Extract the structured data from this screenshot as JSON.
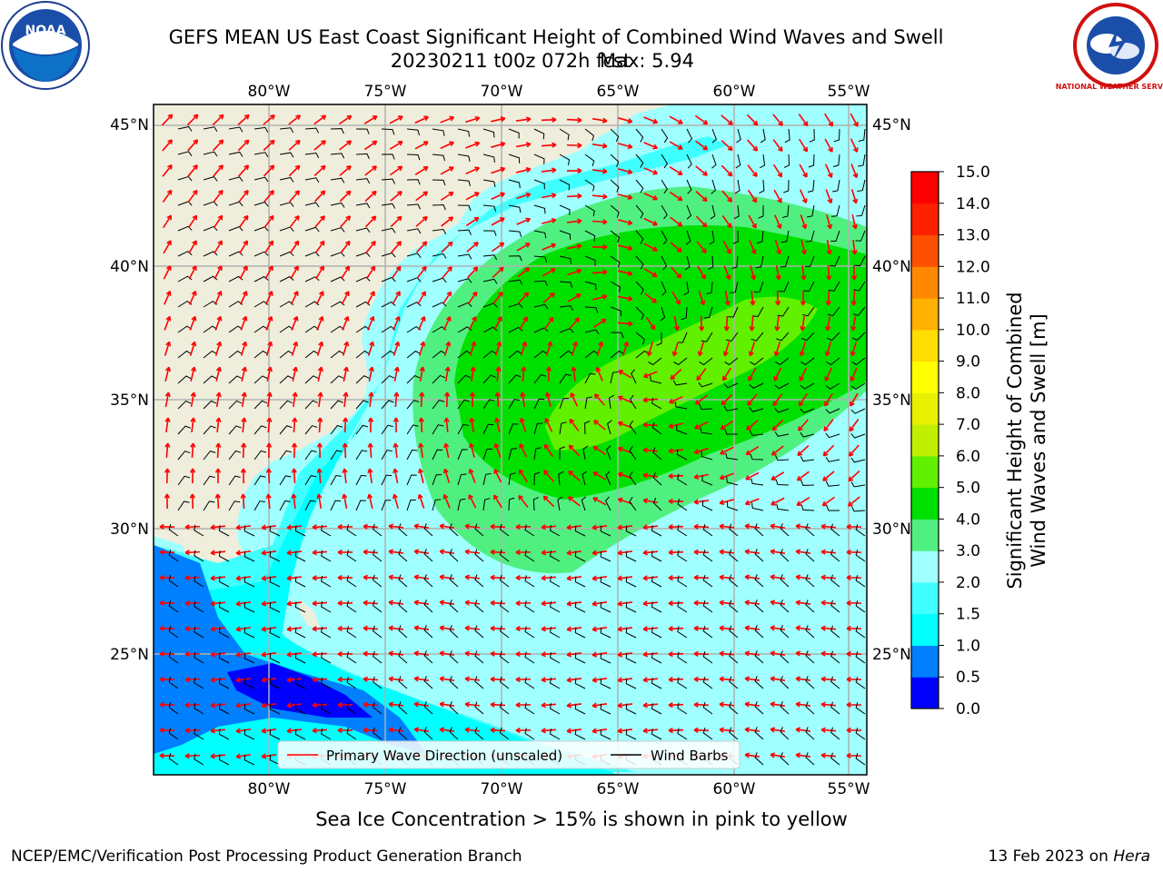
{
  "title_line1": "GEFS MEAN US East Coast Significant Height of Combined Wind Waves and Swell",
  "title_line2": "20230211 t00z 072h fcst",
  "max_label": "Max: 5.94",
  "caption": "Sea Ice Concentration > 15% is shown in pink to yellow",
  "credit": "NCEP/EMC/Verification Post Processing Product Generation Branch",
  "date": "13 Feb 2023 on",
  "machine": "Hera",
  "logos": {
    "left": "NOAA",
    "right": "NATIONAL WEATHER SERVICE"
  },
  "lon_labels": [
    "80°W",
    "75°W",
    "70°W",
    "65°W",
    "60°W",
    "55°W"
  ],
  "lat_labels": [
    "45°N",
    "40°N",
    "35°N",
    "30°N",
    "25°N"
  ],
  "legend": {
    "wave_dir": "Primary Wave Direction (unscaled)",
    "wind_barbs": "Wind Barbs",
    "wave_color": "#ff0000",
    "barb_color": "#000000"
  },
  "colorbar": {
    "label_line1": "Significant Height of Combined",
    "label_line2": "Wind Waves and Swell [m]",
    "ticks": [
      "0.0",
      "0.5",
      "1.0",
      "1.5",
      "2.0",
      "3.0",
      "4.0",
      "5.0",
      "6.0",
      "7.0",
      "8.0",
      "9.0",
      "10.0",
      "11.0",
      "12.0",
      "13.0",
      "14.0",
      "15.0"
    ],
    "colors": [
      "#0000ff",
      "#0080ff",
      "#00ffff",
      "#40ffff",
      "#a0ffff",
      "#50f080",
      "#00e000",
      "#60f000",
      "#c0f000",
      "#e8f000",
      "#ffff00",
      "#ffdd00",
      "#ffb000",
      "#ff8800",
      "#ff5000",
      "#ff2000",
      "#ff0000"
    ]
  },
  "land_color": "#efeedc",
  "grid_color": "#b0b0b0"
}
